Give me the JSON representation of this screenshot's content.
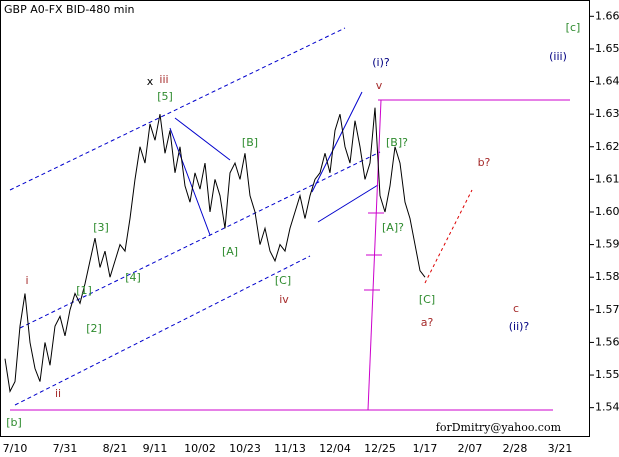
{
  "chart_data": {
    "type": "line",
    "title": "GBP A0-FX BID-480 min",
    "categories": [
      null,
      null,
      "7/10",
      null,
      null,
      null,
      null,
      null,
      null,
      null,
      null,
      null,
      "7/31",
      null,
      null,
      null,
      null,
      null,
      null,
      null,
      null,
      null,
      "8/21",
      null,
      null,
      null,
      null,
      null,
      null,
      null,
      "9/11",
      null,
      null,
      null,
      null,
      null,
      null,
      null,
      null,
      "10/02",
      null,
      null,
      null,
      null,
      null,
      null,
      null,
      null,
      "10/23",
      null,
      null,
      null,
      null,
      null,
      null,
      null,
      null,
      "11/13",
      null,
      null,
      null,
      null,
      null,
      null,
      null,
      null,
      "12/04",
      null,
      null,
      null,
      null,
      null,
      null,
      null,
      null,
      "12/25",
      null,
      null,
      null,
      null,
      null,
      null,
      null,
      null,
      "1/17",
      null,
      null,
      null,
      null,
      null,
      null,
      null,
      null,
      "2/07",
      null,
      null,
      null,
      null,
      null,
      null,
      null,
      null,
      "2/28",
      null,
      null,
      null,
      null,
      null,
      null,
      null,
      null,
      "3/21",
      null,
      null,
      null,
      null,
      null
    ],
    "series": [
      {
        "color": "#000000",
        "values": [
          1.555,
          1.545,
          1.548,
          1.565,
          1.575,
          1.56,
          1.552,
          1.548,
          1.56,
          1.553,
          1.565,
          1.568,
          1.562,
          1.57,
          1.575,
          1.572,
          1.578,
          1.585,
          1.592,
          1.583,
          1.588,
          1.58,
          1.585,
          1.59,
          1.588,
          1.598,
          1.61,
          1.62,
          1.615,
          1.627,
          1.622,
          1.63,
          1.618,
          1.625,
          1.612,
          1.62,
          1.608,
          1.603,
          1.612,
          1.607,
          1.615,
          1.6,
          1.61,
          1.605,
          1.595,
          1.612,
          1.615,
          1.61,
          1.618,
          1.605,
          1.6,
          1.59,
          1.595,
          1.588,
          1.585,
          1.59,
          1.588,
          1.595,
          1.6,
          1.605,
          1.598,
          1.605,
          1.61,
          1.612,
          1.618,
          1.612,
          1.625,
          1.63,
          1.62,
          1.615,
          1.628,
          1.62,
          1.61,
          1.615,
          1.632,
          1.605,
          1.6,
          1.608,
          1.62,
          1.615,
          1.603,
          1.598,
          1.59,
          1.582,
          1.58,
          null,
          null,
          null,
          null,
          null,
          null,
          null,
          null,
          null,
          null,
          null,
          null,
          null,
          null,
          null,
          null,
          null,
          null,
          null,
          null,
          null,
          null,
          null,
          null,
          null,
          null,
          null,
          null,
          null,
          null,
          null,
          null
        ]
      }
    ],
    "ylim": [
      1.531,
      1.665
    ],
    "yticks": [
      1.54,
      1.55,
      1.56,
      1.57,
      1.58,
      1.59,
      {
        "value": 1.6,
        "label": "1.60"
      },
      1.61,
      1.62,
      1.63,
      1.64,
      1.65,
      1.66
    ],
    "annotations": [
      {
        "text": "[c]",
        "color": "#2e8b2e"
      },
      {
        "text": "(iii)",
        "color": "#000080"
      },
      {
        "text": "x",
        "color": "#000000"
      },
      {
        "text": "iii",
        "color": "#a52a2a"
      },
      {
        "text": "[5]",
        "color": "#2e8b2e"
      },
      {
        "text": "(i)?",
        "color": "#000080"
      },
      {
        "text": "v",
        "color": "#a52a2a"
      },
      {
        "text": "[B]",
        "color": "#2e8b2e"
      },
      {
        "text": "[B]?",
        "color": "#2e8b2e"
      },
      {
        "text": "b?",
        "color": "#a52a2a"
      },
      {
        "text": "[3]",
        "color": "#2e8b2e"
      },
      {
        "text": "[A]?",
        "color": "#2e8b2e"
      },
      {
        "text": "[A]",
        "color": "#2e8b2e"
      },
      {
        "text": "i",
        "color": "#a52a2a"
      },
      {
        "text": "[4]",
        "color": "#2e8b2e"
      },
      {
        "text": "[C]",
        "color": "#2e8b2e"
      },
      {
        "text": "[1]",
        "color": "#2e8b2e"
      },
      {
        "text": "[C]",
        "color": "#2e8b2e"
      },
      {
        "text": "iv",
        "color": "#a52a2a"
      },
      {
        "text": "c",
        "color": "#a52a2a"
      },
      {
        "text": "[2]",
        "color": "#2e8b2e"
      },
      {
        "text": "a?",
        "color": "#a52a2a"
      },
      {
        "text": "(ii)?",
        "color": "#000080"
      },
      {
        "text": "ii",
        "color": "#a52a2a"
      },
      {
        "text": "[b]",
        "color": "#2e8b2e"
      }
    ],
    "watermark": "forDmitry@yahoo.com"
  }
}
